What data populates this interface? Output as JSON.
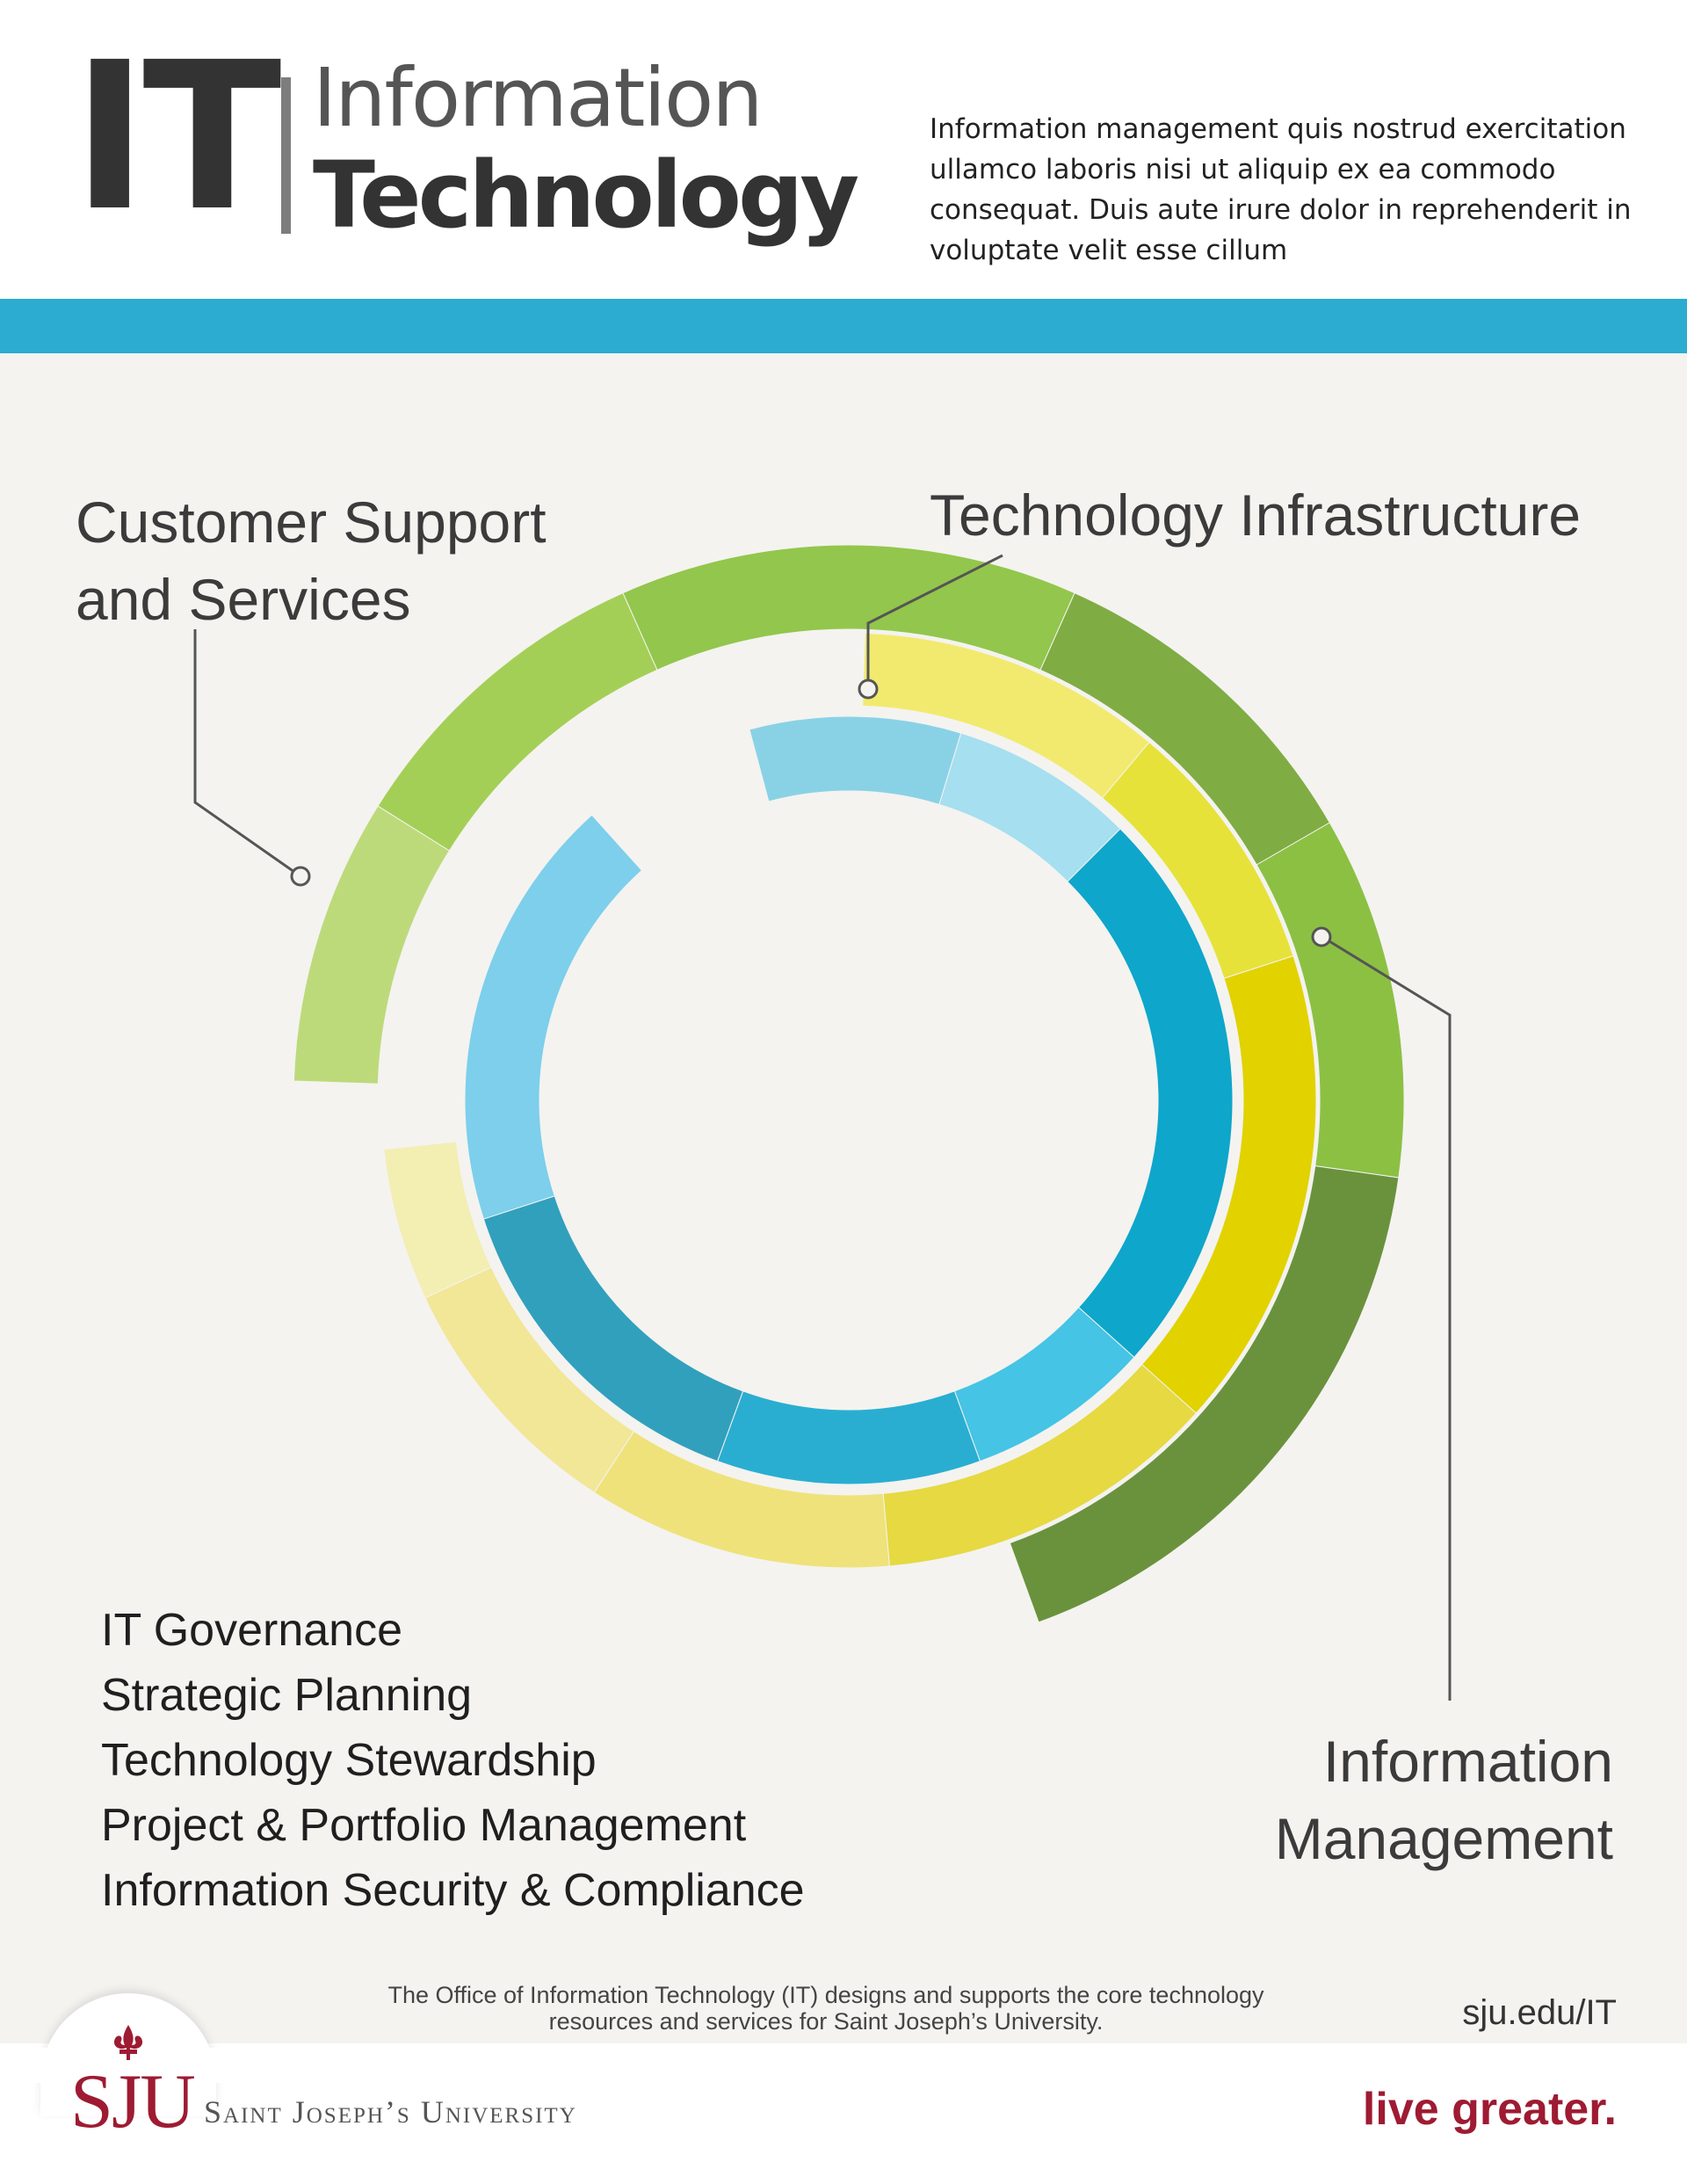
{
  "header": {
    "logo_letters": "IT",
    "logo_line1": "Information",
    "logo_line2": "Technology",
    "intro": "Information management quis nostrud exercitation ullamco laboris nisi ut aliquip ex ea commodo consequat. Duis aute irure dolor in reprehenderit in voluptate velit esse cillum"
  },
  "labels": {
    "customer_support": "Customer Support and Services",
    "technology_infrastructure": "Technology Infrastructure",
    "information_management": "Information Management"
  },
  "governance_list": [
    "IT Governance",
    "Strategic Planning",
    "Technology Stewardship",
    "Project & Portfolio Management",
    "Information Security & Compliance"
  ],
  "footer": {
    "note": "The Office of Information Technology (IT) designs and supports the core technology resources and services for Saint Joseph’s University.",
    "url": "sju.edu/IT",
    "university_mark": "SJU",
    "university_name": "Saint Joseph’s University",
    "tagline": "live greater."
  },
  "colors": {
    "accent_bar": "#2bacd0",
    "brand_red": "#9e1b32",
    "green_ring": [
      "#bdda7b",
      "#a4cf56",
      "#93c64c",
      "#80ac44",
      "#8cc043",
      "#6a923d"
    ],
    "yellow_ring": [
      "#f2ea6e",
      "#e6e23a",
      "#e1d200",
      "#e6d942",
      "#efe27a",
      "#f2e697",
      "#f3eeb2"
    ],
    "blue_ring": [
      "#89d2e6",
      "#a5dff0",
      "#0ea6ca",
      "#45c4e5",
      "#29aed1",
      "#31a0bd",
      "#7dcfeb"
    ]
  }
}
